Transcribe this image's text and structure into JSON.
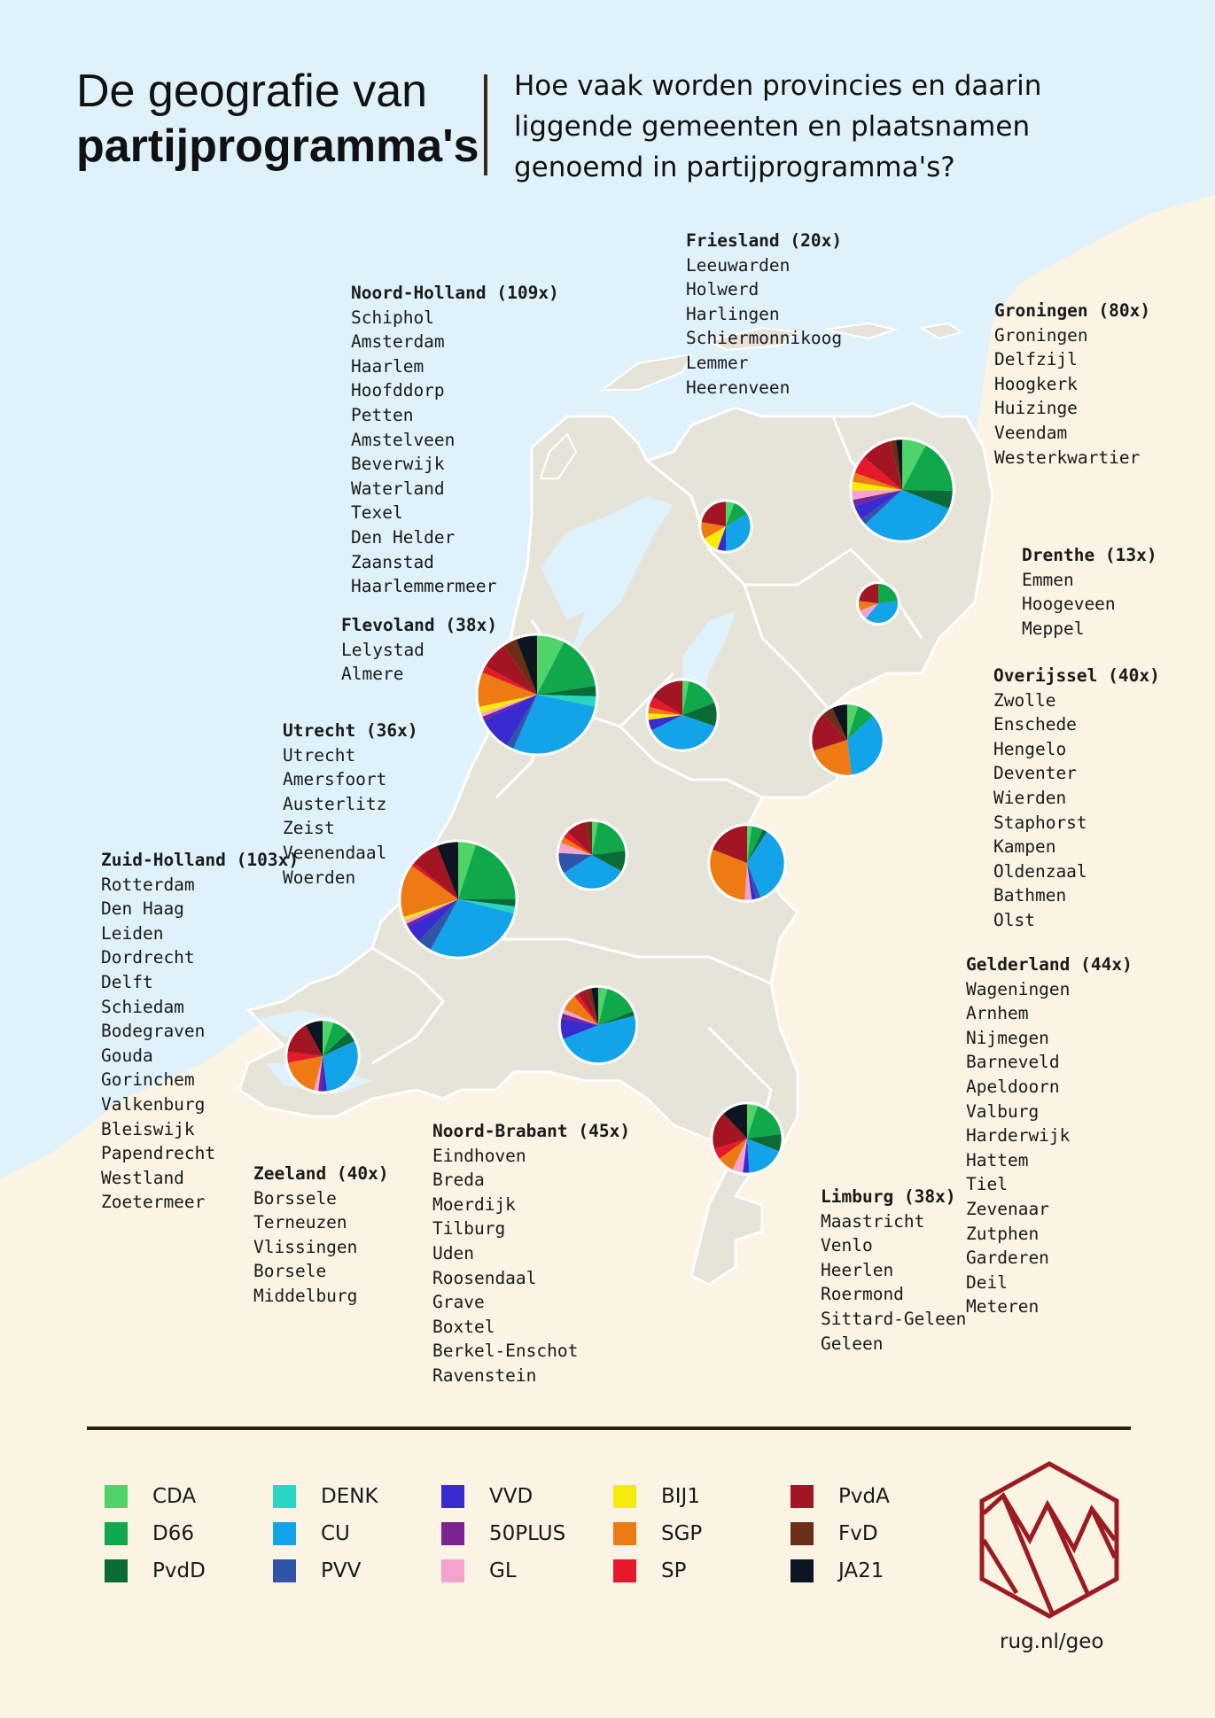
{
  "title": {
    "line1": "De geografie van",
    "line2": "partijprogramma's"
  },
  "subtitle": "Hoe vaak worden provincies en daarin liggende gemeenten en plaatsnamen genoemd in partijprogramma's?",
  "colors": {
    "sea": "#dff1fb",
    "land": "#e6e3d9",
    "outer_land": "#fbf3e3",
    "border": "#ffffff"
  },
  "parties": [
    {
      "name": "CDA",
      "color": "#4fd46a"
    },
    {
      "name": "D66",
      "color": "#0fa84a"
    },
    {
      "name": "PvdD",
      "color": "#0b6b36"
    },
    {
      "name": "DENK",
      "color": "#29d6c4"
    },
    {
      "name": "CU",
      "color": "#12a3e8"
    },
    {
      "name": "PVV",
      "color": "#2e55a8"
    },
    {
      "name": "VVD",
      "color": "#3a2bd0"
    },
    {
      "name": "50PLUS",
      "color": "#7a2391"
    },
    {
      "name": "GL",
      "color": "#f4a3cf"
    },
    {
      "name": "BIJ1",
      "color": "#f7ea0c"
    },
    {
      "name": "SGP",
      "color": "#ed7a12"
    },
    {
      "name": "SP",
      "color": "#e6192a"
    },
    {
      "name": "PvdA",
      "color": "#a31522"
    },
    {
      "name": "FvD",
      "color": "#6b2e16"
    },
    {
      "name": "JA21",
      "color": "#0d1422"
    }
  ],
  "provinces": [
    {
      "name": "Noord-Holland (109x)",
      "places": [
        "Schiphol",
        "Amsterdam",
        "Haarlem",
        "Hoofddorp",
        "Petten",
        "Amstelveen",
        "Beverwijk",
        "Waterland",
        "Texel",
        "Den Helder",
        "Zaanstad",
        "Haarlemmermeer"
      ],
      "pie": {
        "mentions": 109,
        "shares": [
          8,
          16,
          3,
          3,
          30,
          2,
          10,
          1,
          1,
          2,
          10,
          2,
          8,
          4,
          6
        ]
      }
    },
    {
      "name": "Friesland (20x)",
      "places": [
        "Leeuwarden",
        "Holwerd",
        "Harlingen",
        "Schiermonnikoog",
        "Lemmer",
        "Heerenveen"
      ],
      "pie": {
        "mentions": 20,
        "shares": [
          5,
          10,
          0,
          0,
          30,
          0,
          5,
          0,
          0,
          10,
          10,
          0,
          20,
          0,
          0
        ]
      }
    },
    {
      "name": "Groningen (80x)",
      "places": [
        "Groningen",
        "Delfzijl",
        "Hoogkerk",
        "Huizinge",
        "Veendam",
        "Westerkwartier"
      ],
      "pie": {
        "mentions": 80,
        "shares": [
          8,
          18,
          6,
          0,
          33,
          2,
          5,
          2,
          3,
          3,
          3,
          6,
          10,
          2,
          2
        ]
      }
    },
    {
      "name": "Drenthe (13x)",
      "places": [
        "Emmen",
        "Hoogeveen",
        "Meppel"
      ],
      "pie": {
        "mentions": 13,
        "shares": [
          0,
          23,
          0,
          0,
          38,
          0,
          0,
          0,
          8,
          0,
          8,
          0,
          23,
          0,
          0
        ]
      }
    },
    {
      "name": "Flevoland (38x)",
      "places": [
        "Lelystad",
        "Almere"
      ],
      "pie": {
        "mentions": 38,
        "shares": [
          3,
          16,
          11,
          0,
          37,
          0,
          5,
          0,
          0,
          3,
          3,
          5,
          16,
          0,
          0
        ]
      }
    },
    {
      "name": "Utrecht (36x)",
      "places": [
        "Utrecht",
        "Amersfoort",
        "Austerlitz",
        "Zeist",
        "Veenendaal",
        "Woerden"
      ],
      "pie": {
        "mentions": 36,
        "shares": [
          3,
          20,
          10,
          0,
          33,
          10,
          0,
          0,
          5,
          0,
          3,
          3,
          10,
          3,
          0
        ]
      }
    },
    {
      "name": "Zuid-Holland (103x)",
      "places": [
        "Rotterdam",
        "Den Haag",
        "Leiden",
        "Dordrecht",
        "Delft",
        "Schiedam",
        "Bodegraven",
        "Gouda",
        "Gorinchem",
        "Valkenburg",
        "Bleiswijk",
        "Papendrecht",
        "Westland",
        "Zoetermeer"
      ],
      "pie": {
        "mentions": 103,
        "shares": [
          5,
          20,
          2,
          2,
          29,
          4,
          5,
          1,
          1,
          1,
          15,
          1,
          8,
          0,
          6
        ]
      }
    },
    {
      "name": "Overijssel (40x)",
      "places": [
        "Zwolle",
        "Enschede",
        "Hengelo",
        "Deventer",
        "Wierden",
        "Staphorst",
        "Kampen",
        "Oldenzaal",
        "Bathmen",
        "Olst"
      ],
      "pie": {
        "mentions": 40,
        "shares": [
          5,
          8,
          0,
          0,
          35,
          0,
          0,
          0,
          0,
          0,
          22,
          0,
          18,
          5,
          7
        ]
      }
    },
    {
      "name": "Gelderland (44x)",
      "places": [
        "Wageningen",
        "Arnhem",
        "Nijmegen",
        "Barneveld",
        "Apeldoorn",
        "Valburg",
        "Harderwijk",
        "Hattem",
        "Tiel",
        "Zevenaar",
        "Zutphen",
        "Garderen",
        "Deil",
        "Meteren"
      ],
      "pie": {
        "mentions": 44,
        "shares": [
          2,
          5,
          2,
          0,
          35,
          2,
          2,
          0,
          3,
          0,
          30,
          0,
          19,
          0,
          0
        ]
      }
    },
    {
      "name": "Zeeland (40x)",
      "places": [
        "Borssele",
        "Terneuzen",
        "Vlissingen",
        "Borsele",
        "Middelburg"
      ],
      "pie": {
        "mentions": 40,
        "shares": [
          5,
          8,
          5,
          0,
          30,
          0,
          2,
          2,
          2,
          0,
          18,
          5,
          15,
          0,
          8
        ]
      }
    },
    {
      "name": "Noord-Brabant (45x)",
      "places": [
        "Eindhoven",
        "Breda",
        "Moerdijk",
        "Tilburg",
        "Uden",
        "Roosendaal",
        "Grave",
        "Boxtel",
        "Berkel-Enschot",
        "Ravenstein"
      ],
      "pie": {
        "mentions": 45,
        "shares": [
          4,
          15,
          2,
          0,
          48,
          0,
          9,
          2,
          2,
          0,
          7,
          2,
          4,
          2,
          3
        ]
      }
    },
    {
      "name": "Limburg (38x)",
      "places": [
        "Maastricht",
        "Venlo",
        "Heerlen",
        "Roermond",
        "Sittard-Geleen",
        "Geleen"
      ],
      "pie": {
        "mentions": 38,
        "shares": [
          5,
          18,
          8,
          0,
          18,
          0,
          3,
          0,
          5,
          0,
          8,
          5,
          18,
          0,
          12
        ]
      }
    }
  ],
  "footer": {
    "url": "rug.nl/geo"
  }
}
